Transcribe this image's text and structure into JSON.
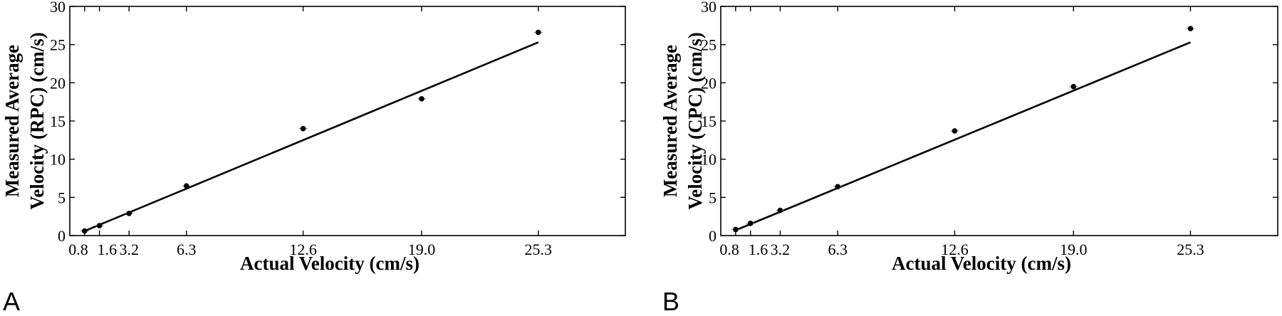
{
  "figure": {
    "panels": [
      {
        "letter": "A"
      },
      {
        "letter": "B"
      }
    ]
  },
  "chart_data": [
    {
      "type": "scatter",
      "panel": "A",
      "title": "",
      "xlabel": "Actual Velocity (cm/s)",
      "ylabel_lines": [
        "Measured Average",
        "Velocity (RPC) (cm/s)"
      ],
      "xlim": [
        0,
        30
      ],
      "ylim": [
        0,
        30
      ],
      "xticks": [
        0.8,
        1.6,
        3.2,
        6.3,
        12.6,
        19.0,
        25.3
      ],
      "xtick_labels": [
        "0.8",
        "1.6",
        "3.2",
        "6.3",
        "12.6",
        "19.0",
        "25.3"
      ],
      "yticks": [
        0,
        5,
        10,
        15,
        20,
        25,
        30
      ],
      "ytick_labels": [
        "0",
        "5",
        "10",
        "15",
        "20",
        "25",
        "30"
      ],
      "points": [
        {
          "x": 0.8,
          "y": 0.6
        },
        {
          "x": 1.6,
          "y": 1.3
        },
        {
          "x": 3.2,
          "y": 2.9
        },
        {
          "x": 6.3,
          "y": 6.5
        },
        {
          "x": 12.6,
          "y": 14.0
        },
        {
          "x": 19.0,
          "y": 17.9
        },
        {
          "x": 25.3,
          "y": 26.6
        }
      ],
      "fit_line": {
        "x": [
          0.8,
          25.3
        ],
        "y": [
          0.6,
          25.3
        ]
      },
      "grid": false,
      "legend": "none"
    },
    {
      "type": "scatter",
      "panel": "B",
      "title": "",
      "xlabel": "Actual Velocity (cm/s)",
      "ylabel_lines": [
        "Measured Average",
        "Velocity (CPC) (cm/s)"
      ],
      "xlim": [
        0,
        30
      ],
      "ylim": [
        0,
        30
      ],
      "xticks": [
        0.8,
        1.6,
        3.2,
        6.3,
        12.6,
        19.0,
        25.3
      ],
      "xtick_labels": [
        "0.8",
        "1.6",
        "3.2",
        "6.3",
        "12.6",
        "19.0",
        "25.3"
      ],
      "yticks": [
        0,
        5,
        10,
        15,
        20,
        25,
        30
      ],
      "ytick_labels": [
        "0",
        "5",
        "10",
        "15",
        "20",
        "25",
        "30"
      ],
      "points": [
        {
          "x": 0.8,
          "y": 0.8
        },
        {
          "x": 1.6,
          "y": 1.6
        },
        {
          "x": 3.2,
          "y": 3.3
        },
        {
          "x": 6.3,
          "y": 6.4
        },
        {
          "x": 12.6,
          "y": 13.7
        },
        {
          "x": 19.0,
          "y": 19.5
        },
        {
          "x": 25.3,
          "y": 27.1
        }
      ],
      "fit_line": {
        "x": [
          0.8,
          25.3
        ],
        "y": [
          0.7,
          25.3
        ]
      },
      "grid": false,
      "legend": "none"
    }
  ]
}
